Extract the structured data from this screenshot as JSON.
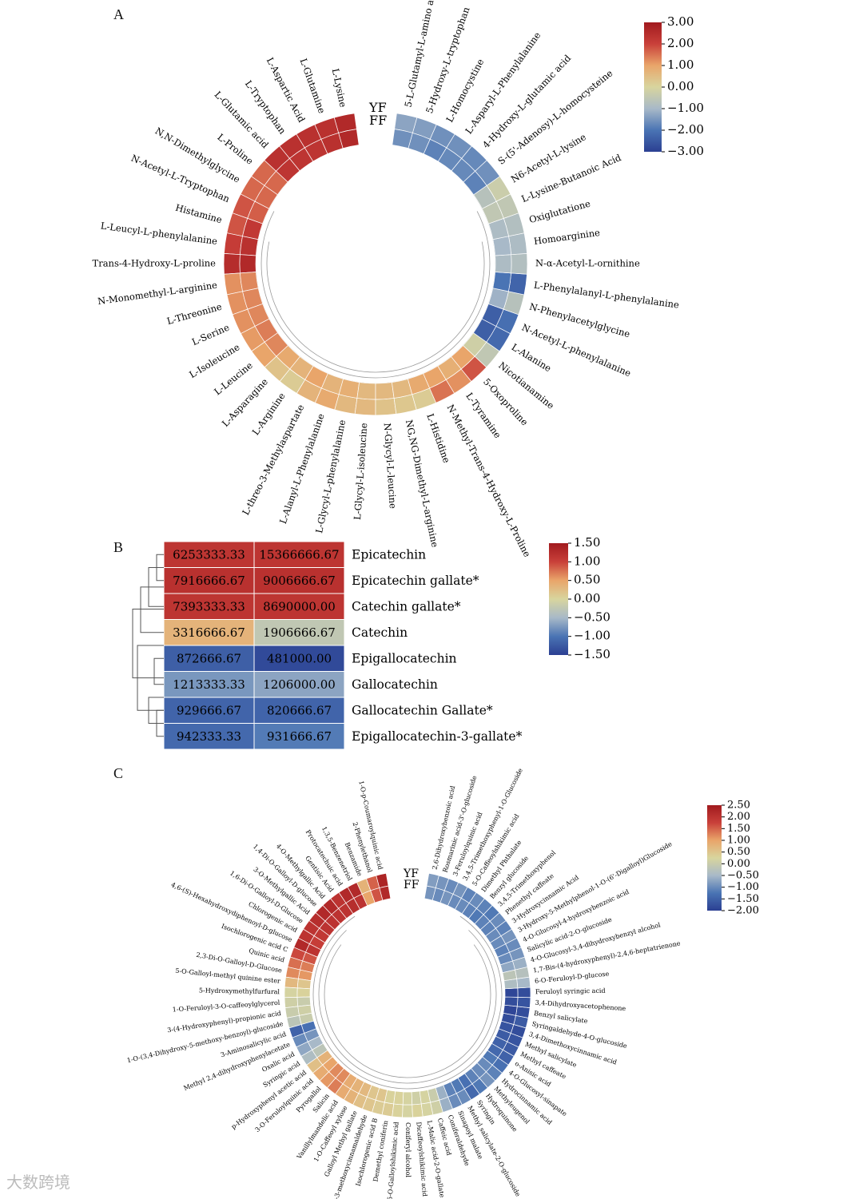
{
  "watermark": "大数跨境",
  "colormap": [
    "#2b3f92",
    "#4a74b4",
    "#a8b9c8",
    "#d8d59e",
    "#e9a56a",
    "#c9403a",
    "#a11a1e"
  ],
  "chart_data": [
    {
      "panel": "A",
      "type": "heatmap",
      "layout": "circular",
      "rows": [
        "YF",
        "FF"
      ],
      "colorbar": {
        "min": -3,
        "max": 3,
        "ticks": [
          "3.00",
          "2.00",
          "1.00",
          "0.00",
          "−1.00",
          "−2.00",
          "−3.00"
        ]
      },
      "items": [
        {
          "name": "L-Lysine",
          "YF": 2.6,
          "FF": 2.6
        },
        {
          "name": "L-Glutamine",
          "YF": 2.4,
          "FF": 2.4
        },
        {
          "name": "L-Aspartic Acid",
          "YF": 2.4,
          "FF": 2.3
        },
        {
          "name": "L-Tryptophan",
          "YF": 2.4,
          "FF": 2.3
        },
        {
          "name": "L-Glutamic acid",
          "YF": 2.4,
          "FF": 2.3
        },
        {
          "name": "L-Proline",
          "YF": 1.6,
          "FF": 1.6
        },
        {
          "name": "N,N-Dimethylglycine",
          "YF": 1.6,
          "FF": 1.6
        },
        {
          "name": "N-Acetyl-L-Tryptophan",
          "YF": 1.8,
          "FF": 1.7
        },
        {
          "name": "Histamine",
          "YF": 1.8,
          "FF": 2.2
        },
        {
          "name": "L-Leucyl-L-phenylalanine",
          "YF": 2.1,
          "FF": 2.4
        },
        {
          "name": "Trans-4-Hydroxy-L-proline",
          "YF": 2.5,
          "FF": 2.6
        },
        {
          "name": "N-Monomethyl-L-arginine",
          "YF": 1.2,
          "FF": 1.3
        },
        {
          "name": "L-Threonine",
          "YF": 1.2,
          "FF": 1.3
        },
        {
          "name": "L-Serine",
          "YF": 1.2,
          "FF": 1.3
        },
        {
          "name": "L-Isoleucine",
          "YF": 1.1,
          "FF": 1.4
        },
        {
          "name": "L-Leucine",
          "YF": 1.0,
          "FF": 1.3
        },
        {
          "name": "L-Asparagine",
          "YF": 0.4,
          "FF": 0.9
        },
        {
          "name": "L-Arginine",
          "YF": 0.2,
          "FF": 0.7
        },
        {
          "name": "L-threo-3-Methylaspartate",
          "YF": 0.7,
          "FF": 1.0
        },
        {
          "name": "L-Alanyl-L-Phenylalanine",
          "YF": 0.9,
          "FF": 0.7
        },
        {
          "name": "L-Glycyl-L-phenylalanine",
          "YF": 0.6,
          "FF": 0.8
        },
        {
          "name": "L-Glycyl-L-isoleucine",
          "YF": 0.6,
          "FF": 0.6
        },
        {
          "name": "N-Glycyl-L-leucine",
          "YF": 0.4,
          "FF": 0.6
        },
        {
          "name": "NG,NG-Dimethyl-L-arginine",
          "YF": 0.3,
          "FF": 0.6
        },
        {
          "name": "L-Histidine",
          "YF": 0.2,
          "FF": 0.9
        },
        {
          "name": "N-Methyl-Trans-4-Hydroxy-L-Proline",
          "YF": 1.5,
          "FF": 1.0
        },
        {
          "name": "L-Tyramine",
          "YF": 1.2,
          "FF": 0.8
        },
        {
          "name": "5-Oxoproline",
          "YF": 1.8,
          "FF": 1.0
        },
        {
          "name": "Nicotianamine",
          "YF": -0.5,
          "FF": -0.2
        },
        {
          "name": "L-Alanine",
          "YF": -2.2,
          "FF": -2.4
        },
        {
          "name": "N-Acetyl-L-phenylalanine",
          "YF": -2.1,
          "FF": -2.4
        },
        {
          "name": "N-Phenylacetylglycine",
          "YF": -0.7,
          "FF": -1.1
        },
        {
          "name": "L-Phenylalanyl-L-phenylalanine",
          "YF": -2.3,
          "FF": -2.0
        },
        {
          "name": "N-α-Acetyl-L-ornithine",
          "YF": -0.8,
          "FF": -0.9
        },
        {
          "name": "Homoarginine",
          "YF": -0.9,
          "FF": -1.0
        },
        {
          "name": "Oxiglutatione",
          "YF": -0.8,
          "FF": -0.9
        },
        {
          "name": "L-Lysine-Butanoic Acid",
          "YF": -0.5,
          "FF": -0.5
        },
        {
          "name": "N6-Acetyl-L-lysine",
          "YF": -0.3,
          "FF": -0.7
        },
        {
          "name": "S-(5'-Adenosy)-L-homocysteine",
          "YF": -1.6,
          "FF": -1.8
        },
        {
          "name": "4-Hydroxy-L-glutamic acid",
          "YF": -1.7,
          "FF": -1.7
        },
        {
          "name": "L-Asparyl-L-Phenylalanine",
          "YF": -1.6,
          "FF": -1.7
        },
        {
          "name": "L-Homocystine",
          "YF": -1.6,
          "FF": -1.8
        },
        {
          "name": "5-Hydroxy-L-tryptophan",
          "YF": -1.4,
          "FF": -1.6
        },
        {
          "name": "5-L-Glutamyl-L-amino acid",
          "YF": -1.3,
          "FF": -1.6
        }
      ]
    },
    {
      "panel": "B",
      "type": "heatmap",
      "layout": "rectangular",
      "colorbar": {
        "min": -1.5,
        "max": 1.5,
        "ticks": [
          "1.50",
          "1.00",
          "0.50",
          "0.00",
          "−0.50",
          "−1.00",
          "−1.50"
        ]
      },
      "rows": [
        {
          "name": "Epicatechin",
          "values": [
            "6253333.33",
            "15366666.67"
          ],
          "z": [
            1.15,
            1.15
          ]
        },
        {
          "name": "Epicatechin gallate*",
          "values": [
            "7916666.67",
            "9006666.67"
          ],
          "z": [
            1.2,
            1.2
          ]
        },
        {
          "name": "Catechin gallate*",
          "values": [
            "7393333.33",
            "8690000.00"
          ],
          "z": [
            1.15,
            1.15
          ]
        },
        {
          "name": "Catechin",
          "values": [
            "3316666.67",
            "1906666.67"
          ],
          "z": [
            0.35,
            -0.25
          ]
        },
        {
          "name": "Epigallocatechin",
          "values": [
            "872666.67",
            "481000.00"
          ],
          "z": [
            -1.2,
            -1.4
          ]
        },
        {
          "name": "Gallocatechin",
          "values": [
            "1213333.33",
            "1206000.00"
          ],
          "z": [
            -0.75,
            -0.65
          ]
        },
        {
          "name": "Gallocatechin Gallate*",
          "values": [
            "929666.67",
            "820666.67"
          ],
          "z": [
            -1.15,
            -1.15
          ]
        },
        {
          "name": "Epigallocatechin-3-gallate*",
          "values": [
            "942333.33",
            "931666.67"
          ],
          "z": [
            -1.1,
            -0.95
          ]
        }
      ]
    },
    {
      "panel": "C",
      "type": "heatmap",
      "layout": "circular",
      "rows": [
        "YF",
        "FF"
      ],
      "colorbar": {
        "min": -2,
        "max": 2.5,
        "ticks": [
          "2.50",
          "2.00",
          "1.50",
          "1.00",
          "0.50",
          "0.00",
          "−0.50",
          "−1.00",
          "−1.50",
          "−2.00"
        ]
      },
      "items": [
        {
          "name": "1-O-p-Coumaroylquinic acid",
          "YF": 2.3,
          "FF": 2.2
        },
        {
          "name": "2-Phenylethanol",
          "YF": 1.5,
          "FF": 1.6
        },
        {
          "name": "Benzamide",
          "YF": 0.8,
          "FF": 1.0
        },
        {
          "name": "1,3,5-Benzenetriol",
          "YF": 2.2,
          "FF": 2.0
        },
        {
          "name": "Protocatechuic acid",
          "YF": 2.2,
          "FF": 2.1
        },
        {
          "name": "Gentisic Acid",
          "YF": 2.0,
          "FF": 2.0
        },
        {
          "name": "4-O-Methylgallic Acid",
          "YF": 2.2,
          "FF": 2.0
        },
        {
          "name": "1,4-Di-O-Galloyl-D-glucose",
          "YF": 2.2,
          "FF": 2.0
        },
        {
          "name": "3-O-Methylgallic Acid",
          "YF": 2.1,
          "FF": 2.0
        },
        {
          "name": "1,6-Di-O-Galloyl-D-Glucose",
          "YF": 2.0,
          "FF": 1.9
        },
        {
          "name": "Chlorogenic acid",
          "YF": 2.0,
          "FF": 1.8
        },
        {
          "name": "4,6-(S)-Hexahydroxydiphenoyl-D-glucose",
          "YF": 2.2,
          "FF": 2.0
        },
        {
          "name": "Isochlorogenic acid C",
          "YF": 1.7,
          "FF": 1.6
        },
        {
          "name": "Quinic acid",
          "YF": 1.4,
          "FF": 1.3
        },
        {
          "name": "2,3-Di-O-Galloyl-D-Glucose",
          "YF": 1.2,
          "FF": 1.1
        },
        {
          "name": "5-O-Galloyl-methyl quinine ester",
          "YF": 0.7,
          "FF": 0.5
        },
        {
          "name": "5-Hydroxymethylfurfural",
          "YF": 0.2,
          "FF": 0.3
        },
        {
          "name": "1-O-Feruloyl-3-O-caffeoylglycerol",
          "YF": 0.1,
          "FF": 0.0
        },
        {
          "name": "3-(4-Hydroxyphenyl)-propionic acid",
          "YF": 0.0,
          "FF": 0.1
        },
        {
          "name": "1-O-(3,4-Dihydroxy-5-methoxy-benzoyl)-glucoside",
          "YF": -0.2,
          "FF": 0.0
        },
        {
          "name": "3-Aminosalicylic acid",
          "YF": -1.5,
          "FF": -1.3
        },
        {
          "name": "Methyl 2,4-dihydroxyphenylacetate",
          "YF": -1.0,
          "FF": -0.9
        },
        {
          "name": "Oxalic acid",
          "YF": -0.7,
          "FF": -0.5
        },
        {
          "name": "Syringic acid",
          "YF": -0.4,
          "FF": -0.2
        },
        {
          "name": "p-Hydroxyphenyl acetic acid",
          "YF": 0.6,
          "FF": 0.8
        },
        {
          "name": "3-O-Feruloylquinic acid",
          "YF": 0.9,
          "FF": 1.0
        },
        {
          "name": "Pyrogallol",
          "YF": 1.1,
          "FF": 1.2
        },
        {
          "name": "Salicin",
          "YF": 1.3,
          "FF": 1.2
        },
        {
          "name": "Vanillylmandelic acid",
          "YF": 0.9,
          "FF": 0.9
        },
        {
          "name": "1-O-Caffeoyl xylose",
          "YF": 0.8,
          "FF": 0.8
        },
        {
          "name": "Galloyl Methyl gallate",
          "YF": 0.6,
          "FF": 0.7
        },
        {
          "name": "4-Hydroxy-3-methoxycinnamaldehyde",
          "YF": 0.5,
          "FF": 0.5
        },
        {
          "name": "Isochlorogenic acid B",
          "YF": 0.4,
          "FF": 0.5
        },
        {
          "name": "Demethyl coniferin",
          "YF": 0.4,
          "FF": 0.3
        },
        {
          "name": "5-O-Galloylshikimic acid",
          "YF": 0.3,
          "FF": 0.3
        },
        {
          "name": "Coniferyl alcohol",
          "YF": 0.2,
          "FF": 0.2
        },
        {
          "name": "Dicaffeoylshikimic acid",
          "YF": 0.3,
          "FF": 0.1
        },
        {
          "name": "L-Malic acid-2-O-gallate",
          "YF": 0.2,
          "FF": 0.2
        },
        {
          "name": "Caffeic acid",
          "YF": 0.1,
          "FF": 0.0
        },
        {
          "name": "Coniferaldehyde",
          "YF": -0.6,
          "FF": -0.6
        },
        {
          "name": "Sinapoyl malate",
          "YF": -1.0,
          "FF": -1.1
        },
        {
          "name": "Methyl salicylate-2-O-glucoside",
          "YF": -1.0,
          "FF": -1.2
        },
        {
          "name": "Syringin",
          "YF": -1.4,
          "FF": -1.3
        },
        {
          "name": "Hydroquinone",
          "YF": -1.2,
          "FF": -1.1
        },
        {
          "name": "Methyleugenol",
          "YF": -0.9,
          "FF": -1.0
        },
        {
          "name": "Hydrocinnamic acid",
          "YF": -1.1,
          "FF": -1.0
        },
        {
          "name": "4-O-Glucosyl-sinapate",
          "YF": -1.3,
          "FF": -1.2
        },
        {
          "name": "o-Anisic acid",
          "YF": -1.5,
          "FF": -1.4
        },
        {
          "name": "Methyl caffeate",
          "YF": -1.6,
          "FF": -1.5
        },
        {
          "name": "Methyl salicylate",
          "YF": -1.7,
          "FF": -1.6
        },
        {
          "name": "3,4-Dimethoxycinnamic acid",
          "YF": -1.8,
          "FF": -1.7
        },
        {
          "name": "Syringaldehyde-4-O-glucoside",
          "YF": -1.6,
          "FF": -1.8
        },
        {
          "name": "Benzyl salicylate",
          "YF": -1.8,
          "FF": -1.9
        },
        {
          "name": "3,4-Dihydroxyacetophenone",
          "YF": -1.7,
          "FF": -1.8
        },
        {
          "name": "Feruloyl syringic acid",
          "YF": -1.8,
          "FF": -1.9
        },
        {
          "name": "6-O-Feruloyl-D-glucose",
          "YF": -0.5,
          "FF": -0.4
        },
        {
          "name": "1,7-Bis-(4-hydroxyphenyl)-2,4,6-heptatrienone",
          "YF": -0.3,
          "FF": -0.2
        },
        {
          "name": "4-O-Glucosyl-3,4-dihydroxybenzyl alcohol",
          "YF": -0.6,
          "FF": -0.7
        },
        {
          "name": "Salicylic acid-2-O-glucoside",
          "YF": -0.9,
          "FF": -1.0
        },
        {
          "name": "4-O-Glucosyl-4-hydroxybenzoic acid",
          "YF": -1.0,
          "FF": -1.1
        },
        {
          "name": "3-Hydroxy-5-Methylphenol-1-O-(6'-Digalloyl)Glucoside",
          "YF": -0.9,
          "FF": -1.0
        },
        {
          "name": "3-Hydroxycinnamic Acid",
          "YF": -1.1,
          "FF": -1.0
        },
        {
          "name": "Phenethyl caffeate",
          "YF": -1.0,
          "FF": -1.1
        },
        {
          "name": "3,4,5-Trimethoxyphenol",
          "YF": -1.2,
          "FF": -1.1
        },
        {
          "name": "Benzyl glucoside",
          "YF": -1.1,
          "FF": -1.2
        },
        {
          "name": "Dimethyl Phthalate",
          "YF": -1.0,
          "FF": -1.1
        },
        {
          "name": "5-O-Caffeoylshikimic acid",
          "YF": -1.1,
          "FF": -1.0
        },
        {
          "name": "3,4,5-Trimethoxyphenyl-1-O-Glucoside",
          "YF": -0.9,
          "FF": -1.0
        },
        {
          "name": "3-Feruloylquinic acid",
          "YF": -1.0,
          "FF": -0.9
        },
        {
          "name": "Rosmarinic acid-3'-O-glucoside",
          "YF": -0.9,
          "FF": -1.0
        },
        {
          "name": "2,6-Dihydroxybenzoic acid",
          "YF": -0.8,
          "FF": -0.9
        }
      ]
    }
  ]
}
